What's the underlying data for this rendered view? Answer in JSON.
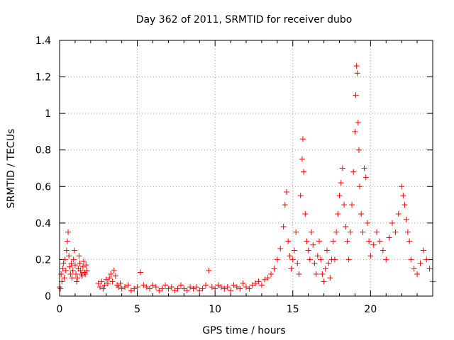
{
  "chart_data": {
    "type": "scatter",
    "title": "Day 362 of 2011, SRMTID for receiver dubo",
    "xlabel": "GPS time / hours",
    "ylabel": "SRMTID / TECUs",
    "xlim": [
      0,
      24
    ],
    "ylim": [
      0,
      1.4
    ],
    "x_ticks": [
      0,
      5,
      10,
      15,
      20
    ],
    "x_tick_labels": [
      "0",
      "5",
      "10",
      "15",
      "20"
    ],
    "y_ticks": [
      0,
      0.2,
      0.4,
      0.6,
      0.8,
      1,
      1.2,
      1.4
    ],
    "y_tick_labels": [
      "0",
      "0.2",
      "0.4",
      "0.6",
      "0.8",
      "1",
      "1.2",
      "1.4"
    ],
    "grid": true,
    "marker": "+",
    "color": "#ff0000",
    "series": [
      {
        "name": "SRMTID",
        "points": [
          [
            0.0,
            0.05
          ],
          [
            0.05,
            0.04
          ],
          [
            0.1,
            0.12
          ],
          [
            0.15,
            0.08
          ],
          [
            0.2,
            0.15
          ],
          [
            0.25,
            0.18
          ],
          [
            0.3,
            0.1
          ],
          [
            0.35,
            0.2
          ],
          [
            0.4,
            0.14
          ],
          [
            0.45,
            0.25
          ],
          [
            0.5,
            0.3
          ],
          [
            0.55,
            0.35
          ],
          [
            0.6,
            0.22
          ],
          [
            0.65,
            0.16
          ],
          [
            0.7,
            0.12
          ],
          [
            0.75,
            0.18
          ],
          [
            0.8,
            0.1
          ],
          [
            0.85,
            0.14
          ],
          [
            0.9,
            0.2
          ],
          [
            0.95,
            0.25
          ],
          [
            1.0,
            0.17
          ],
          [
            1.05,
            0.12
          ],
          [
            1.1,
            0.08
          ],
          [
            1.15,
            0.1
          ],
          [
            1.2,
            0.15
          ],
          [
            1.25,
            0.22
          ],
          [
            1.3,
            0.18
          ],
          [
            1.35,
            0.14
          ],
          [
            1.4,
            0.12
          ],
          [
            1.45,
            0.11
          ],
          [
            1.5,
            0.16
          ],
          [
            1.55,
            0.19
          ],
          [
            1.6,
            0.13
          ],
          [
            1.65,
            0.12
          ],
          [
            1.7,
            0.17
          ],
          [
            1.75,
            0.14
          ],
          [
            2.5,
            0.07
          ],
          [
            2.6,
            0.05
          ],
          [
            2.7,
            0.08
          ],
          [
            2.8,
            0.04
          ],
          [
            2.9,
            0.06
          ],
          [
            3.0,
            0.09
          ],
          [
            3.1,
            0.07
          ],
          [
            3.2,
            0.1
          ],
          [
            3.3,
            0.12
          ],
          [
            3.4,
            0.08
          ],
          [
            3.5,
            0.14
          ],
          [
            3.6,
            0.11
          ],
          [
            3.7,
            0.06
          ],
          [
            3.8,
            0.05
          ],
          [
            3.9,
            0.07
          ],
          [
            4.0,
            0.04
          ],
          [
            4.2,
            0.05
          ],
          [
            4.4,
            0.06
          ],
          [
            4.6,
            0.03
          ],
          [
            4.8,
            0.04
          ],
          [
            5.0,
            0.05
          ],
          [
            5.2,
            0.13
          ],
          [
            5.4,
            0.06
          ],
          [
            5.6,
            0.05
          ],
          [
            5.8,
            0.04
          ],
          [
            6.0,
            0.06
          ],
          [
            6.2,
            0.05
          ],
          [
            6.4,
            0.03
          ],
          [
            6.6,
            0.04
          ],
          [
            6.8,
            0.06
          ],
          [
            7.0,
            0.04
          ],
          [
            7.2,
            0.05
          ],
          [
            7.4,
            0.03
          ],
          [
            7.6,
            0.04
          ],
          [
            7.8,
            0.06
          ],
          [
            8.0,
            0.04
          ],
          [
            8.2,
            0.03
          ],
          [
            8.4,
            0.05
          ],
          [
            8.6,
            0.04
          ],
          [
            8.8,
            0.05
          ],
          [
            9.0,
            0.03
          ],
          [
            9.2,
            0.04
          ],
          [
            9.4,
            0.06
          ],
          [
            9.6,
            0.14
          ],
          [
            9.8,
            0.05
          ],
          [
            10.0,
            0.04
          ],
          [
            10.2,
            0.06
          ],
          [
            10.4,
            0.05
          ],
          [
            10.6,
            0.04
          ],
          [
            10.8,
            0.05
          ],
          [
            11.0,
            0.03
          ],
          [
            11.2,
            0.06
          ],
          [
            11.4,
            0.05
          ],
          [
            11.6,
            0.04
          ],
          [
            11.8,
            0.07
          ],
          [
            12.0,
            0.05
          ],
          [
            12.2,
            0.04
          ],
          [
            12.4,
            0.06
          ],
          [
            12.6,
            0.07
          ],
          [
            12.8,
            0.08
          ],
          [
            13.0,
            0.06
          ],
          [
            13.2,
            0.09
          ],
          [
            13.4,
            0.1
          ],
          [
            13.6,
            0.12
          ],
          [
            13.8,
            0.15
          ],
          [
            14.0,
            0.2
          ],
          [
            14.2,
            0.26
          ],
          [
            14.4,
            0.38
          ],
          [
            14.5,
            0.5
          ],
          [
            14.6,
            0.57
          ],
          [
            14.7,
            0.3
          ],
          [
            14.8,
            0.22
          ],
          [
            14.9,
            0.15
          ],
          [
            15.0,
            0.2
          ],
          [
            15.1,
            0.25
          ],
          [
            15.2,
            0.35
          ],
          [
            15.3,
            0.18
          ],
          [
            15.4,
            0.12
          ],
          [
            15.5,
            0.55
          ],
          [
            15.6,
            0.75
          ],
          [
            15.65,
            0.86
          ],
          [
            15.7,
            0.68
          ],
          [
            15.8,
            0.45
          ],
          [
            15.9,
            0.3
          ],
          [
            16.0,
            0.25
          ],
          [
            16.1,
            0.2
          ],
          [
            16.2,
            0.35
          ],
          [
            16.3,
            0.28
          ],
          [
            16.4,
            0.18
          ],
          [
            16.5,
            0.12
          ],
          [
            16.6,
            0.22
          ],
          [
            16.7,
            0.3
          ],
          [
            16.8,
            0.2
          ],
          [
            16.9,
            0.12
          ],
          [
            17.0,
            0.08
          ],
          [
            17.1,
            0.15
          ],
          [
            17.2,
            0.25
          ],
          [
            17.3,
            0.18
          ],
          [
            17.4,
            0.1
          ],
          [
            17.5,
            0.2
          ],
          [
            17.6,
            0.3
          ],
          [
            17.7,
            0.2
          ],
          [
            17.8,
            0.35
          ],
          [
            17.9,
            0.45
          ],
          [
            18.0,
            0.55
          ],
          [
            18.1,
            0.62
          ],
          [
            18.2,
            0.7
          ],
          [
            18.3,
            0.5
          ],
          [
            18.4,
            0.38
          ],
          [
            18.5,
            0.3
          ],
          [
            18.6,
            0.2
          ],
          [
            18.7,
            0.35
          ],
          [
            18.8,
            0.5
          ],
          [
            18.9,
            0.68
          ],
          [
            19.0,
            0.9
          ],
          [
            19.05,
            1.1
          ],
          [
            19.1,
            1.26
          ],
          [
            19.15,
            1.22
          ],
          [
            19.2,
            0.95
          ],
          [
            19.25,
            0.8
          ],
          [
            19.3,
            0.6
          ],
          [
            19.4,
            0.45
          ],
          [
            19.5,
            0.35
          ],
          [
            19.6,
            0.7
          ],
          [
            19.7,
            0.65
          ],
          [
            19.8,
            0.4
          ],
          [
            19.9,
            0.3
          ],
          [
            20.0,
            0.22
          ],
          [
            20.2,
            0.28
          ],
          [
            20.4,
            0.35
          ],
          [
            20.6,
            0.3
          ],
          [
            20.8,
            0.25
          ],
          [
            21.0,
            0.2
          ],
          [
            21.2,
            0.32
          ],
          [
            21.4,
            0.4
          ],
          [
            21.6,
            0.35
          ],
          [
            21.8,
            0.45
          ],
          [
            22.0,
            0.6
          ],
          [
            22.1,
            0.55
          ],
          [
            22.2,
            0.5
          ],
          [
            22.3,
            0.42
          ],
          [
            22.4,
            0.35
          ],
          [
            22.5,
            0.3
          ],
          [
            22.6,
            0.2
          ],
          [
            22.8,
            0.15
          ],
          [
            23.0,
            0.12
          ],
          [
            23.2,
            0.18
          ],
          [
            23.4,
            0.25
          ],
          [
            23.6,
            0.2
          ],
          [
            23.8,
            0.15
          ],
          [
            24.0,
            0.08
          ]
        ]
      }
    ]
  }
}
